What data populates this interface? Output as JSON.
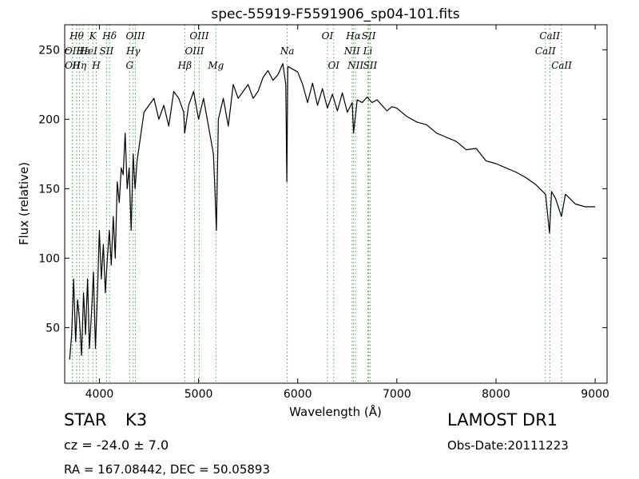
{
  "chart_data": {
    "type": "line",
    "title": "spec-55919-F5591906_sp04-101.fits",
    "xlabel": "Wavelength (Å)",
    "ylabel": "Flux (relative)",
    "xlim": [
      3650,
      9120
    ],
    "ylim": [
      10,
      268
    ],
    "x_ticks": [
      4000,
      5000,
      6000,
      7000,
      8000,
      9000
    ],
    "y_ticks": [
      50,
      100,
      150,
      200,
      250
    ],
    "grid": false,
    "series": [
      {
        "color": "#000000",
        "x": [
          3700,
          3720,
          3740,
          3760,
          3780,
          3800,
          3820,
          3840,
          3860,
          3880,
          3900,
          3920,
          3940,
          3960,
          3980,
          4000,
          4020,
          4040,
          4060,
          4080,
          4100,
          4120,
          4140,
          4160,
          4180,
          4200,
          4220,
          4240,
          4260,
          4280,
          4300,
          4320,
          4340,
          4360,
          4380,
          4400,
          4450,
          4500,
          4550,
          4600,
          4650,
          4700,
          4750,
          4800,
          4850,
          4860,
          4900,
          4950,
          5000,
          5050,
          5100,
          5150,
          5170,
          5180,
          5200,
          5250,
          5300,
          5350,
          5400,
          5450,
          5500,
          5550,
          5600,
          5650,
          5700,
          5750,
          5800,
          5850,
          5880,
          5890,
          5900,
          5950,
          6000,
          6050,
          6100,
          6150,
          6200,
          6250,
          6300,
          6350,
          6400,
          6450,
          6500,
          6550,
          6563,
          6600,
          6650,
          6700,
          6750,
          6800,
          6850,
          6900,
          6950,
          7000,
          7100,
          7200,
          7300,
          7400,
          7500,
          7600,
          7700,
          7800,
          7900,
          8000,
          8100,
          8200,
          8300,
          8400,
          8500,
          8540,
          8560,
          8600,
          8660,
          8700,
          8800,
          8900,
          9000
        ],
        "values": [
          27,
          45,
          85,
          40,
          70,
          55,
          30,
          75,
          45,
          85,
          35,
          60,
          90,
          35,
          75,
          120,
          85,
          110,
          75,
          100,
          120,
          95,
          130,
          100,
          155,
          140,
          165,
          160,
          190,
          150,
          165,
          120,
          175,
          150,
          170,
          180,
          205,
          210,
          215,
          200,
          210,
          195,
          220,
          215,
          205,
          190,
          210,
          220,
          200,
          215,
          195,
          175,
          140,
          120,
          200,
          215,
          195,
          225,
          215,
          220,
          225,
          215,
          220,
          230,
          235,
          228,
          232,
          240,
          225,
          155,
          238,
          236,
          234,
          225,
          212,
          226,
          210,
          222,
          208,
          218,
          206,
          219,
          205,
          212,
          190,
          214,
          212,
          216,
          212,
          214,
          210,
          206,
          209,
          208,
          202,
          198,
          196,
          190,
          187,
          184,
          178,
          179,
          170,
          168,
          165,
          162,
          158,
          153,
          146,
          118,
          148,
          143,
          130,
          146,
          139,
          137,
          137
        ]
      }
    ],
    "line_markers": [
      {
        "wl": 3727,
        "label": "OII",
        "row": 1
      },
      {
        "wl": 3729,
        "label": "OII",
        "row": 2
      },
      {
        "wl": 3771,
        "label": "Hθ",
        "row": 0
      },
      {
        "wl": 3798,
        "label": "Hη",
        "row": 2
      },
      {
        "wl": 3835,
        "label": "Hε",
        "row": 1
      },
      {
        "wl": 3889,
        "label": "HeI",
        "row": 1
      },
      {
        "wl": 3934,
        "label": "K",
        "row": 0
      },
      {
        "wl": 3968,
        "label": "H",
        "row": 2
      },
      {
        "wl": 4072,
        "label": "SII",
        "row": 1
      },
      {
        "wl": 4102,
        "label": "Hδ",
        "row": 0
      },
      {
        "wl": 4305,
        "label": "G",
        "row": 2
      },
      {
        "wl": 4341,
        "label": "Hγ",
        "row": 1
      },
      {
        "wl": 4363,
        "label": "OIII",
        "row": 0
      },
      {
        "wl": 4861,
        "label": "Hβ",
        "row": 2
      },
      {
        "wl": 4959,
        "label": "OIII",
        "row": 1
      },
      {
        "wl": 5007,
        "label": "OIII",
        "row": 0
      },
      {
        "wl": 5175,
        "label": "Mg",
        "row": 2
      },
      {
        "wl": 5894,
        "label": "Na",
        "row": 1
      },
      {
        "wl": 6300,
        "label": "OI",
        "row": 0
      },
      {
        "wl": 6363,
        "label": "OI",
        "row": 2
      },
      {
        "wl": 6548,
        "label": "NII",
        "row": 1
      },
      {
        "wl": 6563,
        "label": "Hα",
        "row": 0
      },
      {
        "wl": 6583,
        "label": "NII",
        "row": 2
      },
      {
        "wl": 6707,
        "label": "Li",
        "row": 1
      },
      {
        "wl": 6716,
        "label": "SII",
        "row": 0
      },
      {
        "wl": 6731,
        "label": "SII",
        "row": 2
      },
      {
        "wl": 8498,
        "label": "CaII",
        "row": 1
      },
      {
        "wl": 8542,
        "label": "CaII",
        "row": 0
      },
      {
        "wl": 8662,
        "label": "CaII",
        "row": 2
      }
    ]
  },
  "info": {
    "object_class": "STAR",
    "subclass": "K3",
    "survey": "LAMOST DR1",
    "cz": "cz = -24.0 ± 7.0",
    "obs_date": "Obs-Date:20111223",
    "coords": "RA = 167.08442, DEC = 50.05893"
  }
}
